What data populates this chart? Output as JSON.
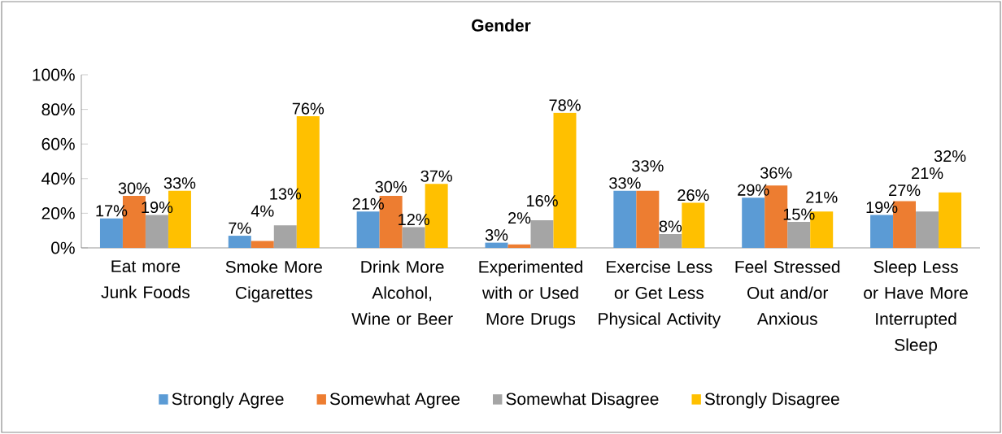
{
  "chart_data": {
    "type": "bar",
    "title": "Gender",
    "categories": [
      "Eat more Junk Foods",
      "Smoke More Cigarettes",
      "Drink More Alcohol, Wine or Beer",
      "Experimented with or Used More Drugs",
      "Exercise Less or Get Less Physical Activity",
      "Feel Stressed Out and/or Anxious",
      "Sleep Less or Have More Interrupted Sleep"
    ],
    "series": [
      {
        "name": "Strongly Agree",
        "color": "#5b9bd5",
        "values": [
          17,
          7,
          21,
          3,
          33,
          29,
          19
        ],
        "value_labels": [
          "17%",
          "7%",
          "21%",
          "3%",
          "33%",
          "29%",
          "19%"
        ]
      },
      {
        "name": "Somewhat Agree",
        "color": "#ed7d31",
        "values": [
          30,
          4,
          30,
          2,
          33,
          36,
          27
        ],
        "value_labels": [
          "30%",
          "4%",
          "30%",
          "2%",
          "33%",
          "36%",
          "27%"
        ]
      },
      {
        "name": "Somewhat Disagree",
        "color": "#a5a5a5",
        "values": [
          19,
          13,
          12,
          16,
          8,
          15,
          21
        ],
        "value_labels": [
          "19%",
          "13%",
          "12%",
          "16%",
          "8%",
          "15%",
          "21%"
        ]
      },
      {
        "name": "Strongly Disagree",
        "color": "#ffc000",
        "values": [
          33,
          76,
          37,
          78,
          26,
          21,
          32
        ],
        "value_labels": [
          "33%",
          "76%",
          "37%",
          "78%",
          "26%",
          "21%",
          "32%"
        ]
      }
    ],
    "ylim": [
      0,
      100
    ],
    "yticks": [
      {
        "value": 0,
        "label": "0%"
      },
      {
        "value": 20,
        "label": "20%"
      },
      {
        "value": 40,
        "label": "40%"
      },
      {
        "value": 60,
        "label": "60%"
      },
      {
        "value": 80,
        "label": "80%"
      },
      {
        "value": 100,
        "label": "100%"
      }
    ],
    "legend": "bottom",
    "grid": false
  }
}
